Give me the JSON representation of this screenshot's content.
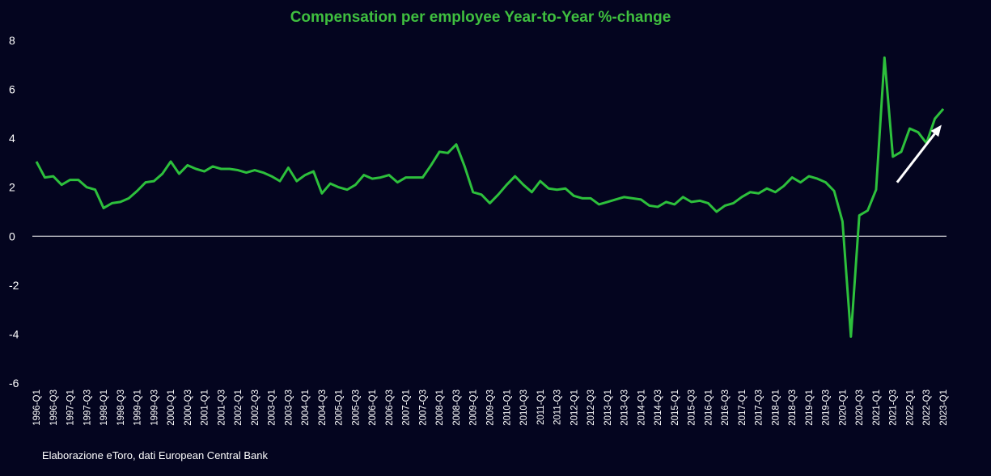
{
  "colors": {
    "background": "#04051f",
    "title": "#3fbf3f",
    "line": "#2dc03c",
    "text": "#ffffff",
    "zero_line": "#ffffff",
    "arrow": "#ffffff"
  },
  "source_note": "Elaborazione eToro, dati European Central Bank",
  "chart_data": {
    "type": "line",
    "title": "Compensation per employee Year-to-Year %-change",
    "xlabel": "",
    "ylabel": "",
    "ylim": [
      -6,
      8
    ],
    "yticks": [
      "8",
      "6",
      "4",
      "2",
      "0",
      "-2",
      "-4",
      "-6"
    ],
    "grid": false,
    "zero_line": true,
    "x_tick_labels": [
      "1996-Q1",
      "1996-Q3",
      "1997-Q1",
      "1997-Q3",
      "1998-Q1",
      "1998-Q3",
      "1999-Q1",
      "1999-Q3",
      "2000-Q1",
      "2000-Q3",
      "2001-Q1",
      "2001-Q3",
      "2002-Q1",
      "2002-Q3",
      "2003-Q1",
      "2003-Q3",
      "2004-Q1",
      "2004-Q3",
      "2005-Q1",
      "2005-Q3",
      "2006-Q1",
      "2006-Q3",
      "2007-Q1",
      "2007-Q3",
      "2008-Q1",
      "2008-Q3",
      "2009-Q1",
      "2009-Q3",
      "2010-Q1",
      "2010-Q3",
      "2011-Q1",
      "2011-Q3",
      "2012-Q1",
      "2012-Q3",
      "2013-Q1",
      "2013-Q3",
      "2014-Q1",
      "2014-Q3",
      "2015-Q1",
      "2015-Q3",
      "2016-Q1",
      "2016-Q3",
      "2017-Q1",
      "2017-Q3",
      "2018-Q1",
      "2018-Q3",
      "2019-Q1",
      "2019-Q3",
      "2020-Q1",
      "2020-Q3",
      "2021-Q1",
      "2021-Q3",
      "2022-Q1",
      "2022-Q3",
      "2023-Q1"
    ],
    "series": [
      {
        "values": [
          3.05,
          2.4,
          2.45,
          2.1,
          2.3,
          2.3,
          2.0,
          1.9,
          1.15,
          1.35,
          1.4,
          1.55,
          1.85,
          2.2,
          2.25,
          2.55,
          3.05,
          2.55,
          2.9,
          2.75,
          2.65,
          2.85,
          2.75,
          2.75,
          2.7,
          2.6,
          2.7,
          2.6,
          2.45,
          2.25,
          2.8,
          2.25,
          2.5,
          2.65,
          1.75,
          2.15,
          2.0,
          1.9,
          2.1,
          2.5,
          2.35,
          2.4,
          2.5,
          2.2,
          2.4,
          2.4,
          2.4,
          2.9,
          3.45,
          3.4,
          3.75,
          2.85,
          1.8,
          1.7,
          1.35,
          1.7,
          2.1,
          2.45,
          2.1,
          1.8,
          2.25,
          1.95,
          1.9,
          1.95,
          1.65,
          1.55,
          1.55,
          1.3,
          1.4,
          1.5,
          1.6,
          1.55,
          1.5,
          1.25,
          1.2,
          1.4,
          1.3,
          1.6,
          1.4,
          1.45,
          1.35,
          1.0,
          1.25,
          1.35,
          1.6,
          1.8,
          1.75,
          1.95,
          1.8,
          2.05,
          2.4,
          2.2,
          2.45,
          2.35,
          2.2,
          1.85,
          0.6,
          -4.1,
          0.85,
          1.05,
          1.9,
          7.3,
          3.25,
          3.45,
          4.4,
          4.25,
          3.8,
          4.8,
          5.2
        ]
      }
    ],
    "annotations": [
      {
        "type": "arrow",
        "from": {
          "x_index": 102.5,
          "y": 2.2
        },
        "to": {
          "x_index": 107.8,
          "y": 4.55
        }
      }
    ]
  }
}
